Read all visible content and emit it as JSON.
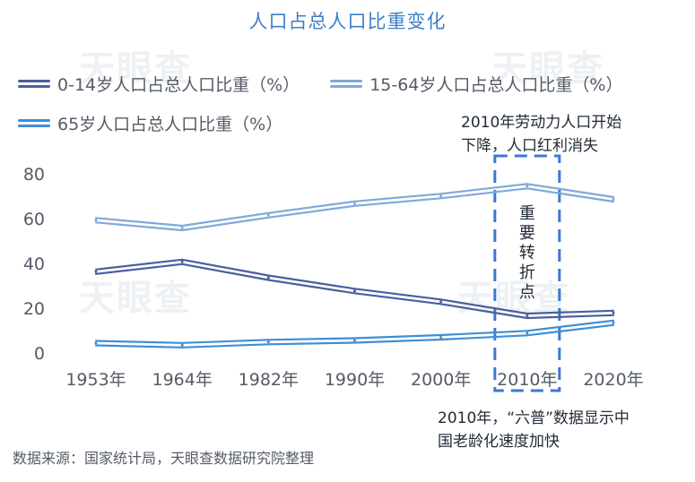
{
  "watermark": "天眼查",
  "chart_data": {
    "type": "line",
    "title": "人口占总人口比重变化",
    "categories": [
      "1953年",
      "1964年",
      "1982年",
      "1990年",
      "2000年",
      "2010年",
      "2020年"
    ],
    "ylim": [
      0,
      80
    ],
    "yticks": [
      "0",
      "20",
      "40",
      "60",
      "80"
    ],
    "grid": false,
    "legend_position": "top",
    "series": [
      {
        "name": "0-14岁人口占总人口比重（%）",
        "color": "#4a5f9c",
        "values": [
          36.3,
          40.7,
          33.6,
          27.7,
          22.9,
          16.6,
          17.9
        ]
      },
      {
        "name": "15-64岁人口占总人口比重（%）",
        "color": "#7fa9d8",
        "values": [
          59.3,
          55.8,
          61.5,
          66.7,
          70.1,
          74.5,
          68.6
        ]
      },
      {
        "name": "65岁人口占总人口比重（%）",
        "color": "#3f8ed6",
        "values": [
          4.4,
          3.5,
          4.9,
          5.6,
          7.0,
          8.9,
          13.5
        ]
      }
    ],
    "annotations": {
      "top": [
        "2010年劳动力人口开始",
        "下降，人口红利消失"
      ],
      "box_label": [
        "重",
        "要",
        "转",
        "折",
        "点"
      ],
      "bottom": [
        "2010年，“六普”数据显示中",
        "国老龄化速度加快"
      ]
    }
  },
  "source": "数据来源：国家统计局，天眼查数据研究院整理"
}
